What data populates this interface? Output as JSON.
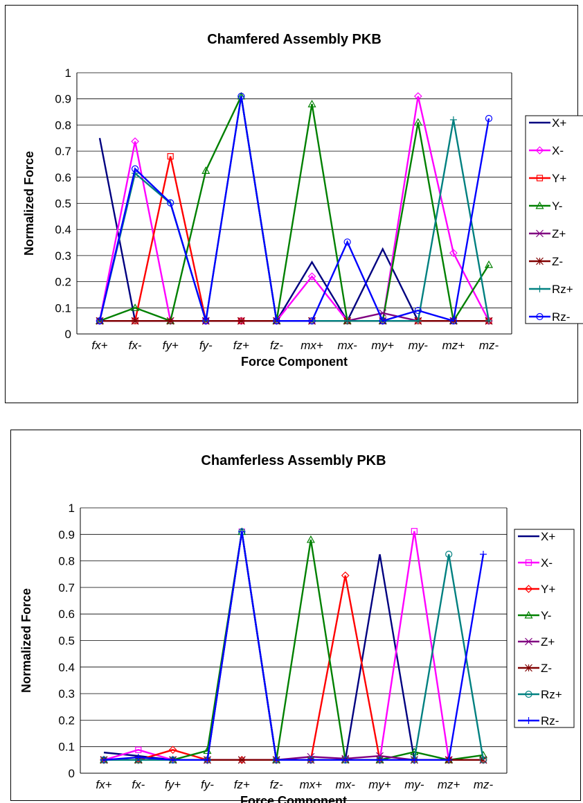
{
  "chart_data": [
    {
      "type": "line",
      "title": "Chamfered Assembly PKB",
      "xlabel": "Force Component",
      "ylabel": "Normalized Force",
      "ylim": [
        0,
        1
      ],
      "yticks": [
        "0",
        "0.1",
        "0.2",
        "0.3",
        "0.4",
        "0.5",
        "0.6",
        "0.7",
        "0.8",
        "0.9",
        "1"
      ],
      "grid": true,
      "legend_position": "right",
      "categories": [
        "fx+",
        "fx-",
        "fy+",
        "fy-",
        "fz+",
        "fz-",
        "mx+",
        "mx-",
        "my+",
        "my-",
        "mz+",
        "mz-"
      ],
      "series": [
        {
          "name": "X+",
          "color": "#000080",
          "marker": "none",
          "values": [
            0.75,
            0.05,
            0.05,
            0.05,
            0.05,
            0.05,
            0.275,
            0.05,
            0.325,
            0.05,
            0.05,
            0.05
          ]
        },
        {
          "name": "X-",
          "color": "#ff00ff",
          "marker": "diamond",
          "values": [
            0.05,
            0.737,
            0.05,
            0.05,
            0.05,
            0.05,
            0.22,
            0.05,
            0.05,
            0.91,
            0.31,
            0.05
          ]
        },
        {
          "name": "Y+",
          "color": "#ff0000",
          "marker": "square",
          "values": [
            0.05,
            0.05,
            0.68,
            0.05,
            0.05,
            0.05,
            0.05,
            0.05,
            0.05,
            0.05,
            0.05,
            0.05
          ]
        },
        {
          "name": "Y-",
          "color": "#008000",
          "marker": "triangle",
          "values": [
            0.05,
            0.1,
            0.05,
            0.625,
            0.91,
            0.05,
            0.88,
            0.05,
            0.05,
            0.81,
            0.05,
            0.265
          ]
        },
        {
          "name": "Z+",
          "color": "#800080",
          "marker": "x",
          "values": [
            0.05,
            0.05,
            0.05,
            0.05,
            0.05,
            0.05,
            0.05,
            0.05,
            0.08,
            0.05,
            0.05,
            0.05
          ]
        },
        {
          "name": "Z-",
          "color": "#800000",
          "marker": "asterisk",
          "values": [
            0.05,
            0.05,
            0.05,
            0.05,
            0.05,
            0.05,
            0.05,
            0.05,
            0.05,
            0.05,
            0.05,
            0.05
          ]
        },
        {
          "name": "Rz+",
          "color": "#008080",
          "marker": "plus",
          "values": [
            0.05,
            0.615,
            0.5,
            0.05,
            0.91,
            0.05,
            0.05,
            0.05,
            0.05,
            0.05,
            0.82,
            0.05
          ]
        },
        {
          "name": "Rz-",
          "color": "#0000ff",
          "marker": "circle",
          "values": [
            0.05,
            0.632,
            0.502,
            0.05,
            0.91,
            0.05,
            0.05,
            0.352,
            0.05,
            0.09,
            0.05,
            0.825
          ]
        }
      ]
    },
    {
      "type": "line",
      "title": "Chamferless Assembly PKB",
      "xlabel": "Force Component",
      "ylabel": "Normalized Force",
      "ylim": [
        0,
        1
      ],
      "yticks": [
        "0",
        "0.1",
        "0.2",
        "0.3",
        "0.4",
        "0.5",
        "0.6",
        "0.7",
        "0.8",
        "0.9",
        "1"
      ],
      "grid": true,
      "legend_position": "right",
      "categories": [
        "fx+",
        "fx-",
        "fy+",
        "fy-",
        "fz+",
        "fz-",
        "mx+",
        "mx-",
        "my+",
        "my-",
        "mz+",
        "mz-"
      ],
      "series": [
        {
          "name": "X+",
          "color": "#000080",
          "marker": "none",
          "values": [
            0.078,
            0.065,
            0.05,
            0.05,
            0.91,
            0.05,
            0.05,
            0.05,
            0.825,
            0.05,
            0.05,
            0.05
          ]
        },
        {
          "name": "X-",
          "color": "#ff00ff",
          "marker": "square",
          "values": [
            0.05,
            0.088,
            0.05,
            0.05,
            0.91,
            0.05,
            0.05,
            0.05,
            0.05,
            0.912,
            0.05,
            0.05
          ]
        },
        {
          "name": "Y+",
          "color": "#ff0000",
          "marker": "diamond",
          "values": [
            0.05,
            0.05,
            0.088,
            0.05,
            0.05,
            0.05,
            0.05,
            0.745,
            0.05,
            0.05,
            0.05,
            0.05
          ]
        },
        {
          "name": "Y-",
          "color": "#008000",
          "marker": "triangle",
          "values": [
            0.05,
            0.05,
            0.05,
            0.085,
            0.91,
            0.05,
            0.88,
            0.05,
            0.05,
            0.08,
            0.05,
            0.068
          ]
        },
        {
          "name": "Z+",
          "color": "#800080",
          "marker": "x",
          "values": [
            0.05,
            0.05,
            0.05,
            0.05,
            0.05,
            0.05,
            0.062,
            0.055,
            0.065,
            0.05,
            0.05,
            0.05
          ]
        },
        {
          "name": "Z-",
          "color": "#800000",
          "marker": "asterisk",
          "values": [
            0.05,
            0.05,
            0.05,
            0.05,
            0.05,
            0.05,
            0.05,
            0.05,
            0.05,
            0.05,
            0.05,
            0.05
          ]
        },
        {
          "name": "Rz+",
          "color": "#008080",
          "marker": "circle",
          "values": [
            0.05,
            0.05,
            0.05,
            0.05,
            0.91,
            0.05,
            0.05,
            0.05,
            0.05,
            0.05,
            0.825,
            0.05
          ]
        },
        {
          "name": "Rz-",
          "color": "#0000ff",
          "marker": "plus",
          "values": [
            0.05,
            0.06,
            0.05,
            0.05,
            0.91,
            0.05,
            0.05,
            0.05,
            0.05,
            0.05,
            0.05,
            0.825
          ]
        }
      ]
    }
  ]
}
